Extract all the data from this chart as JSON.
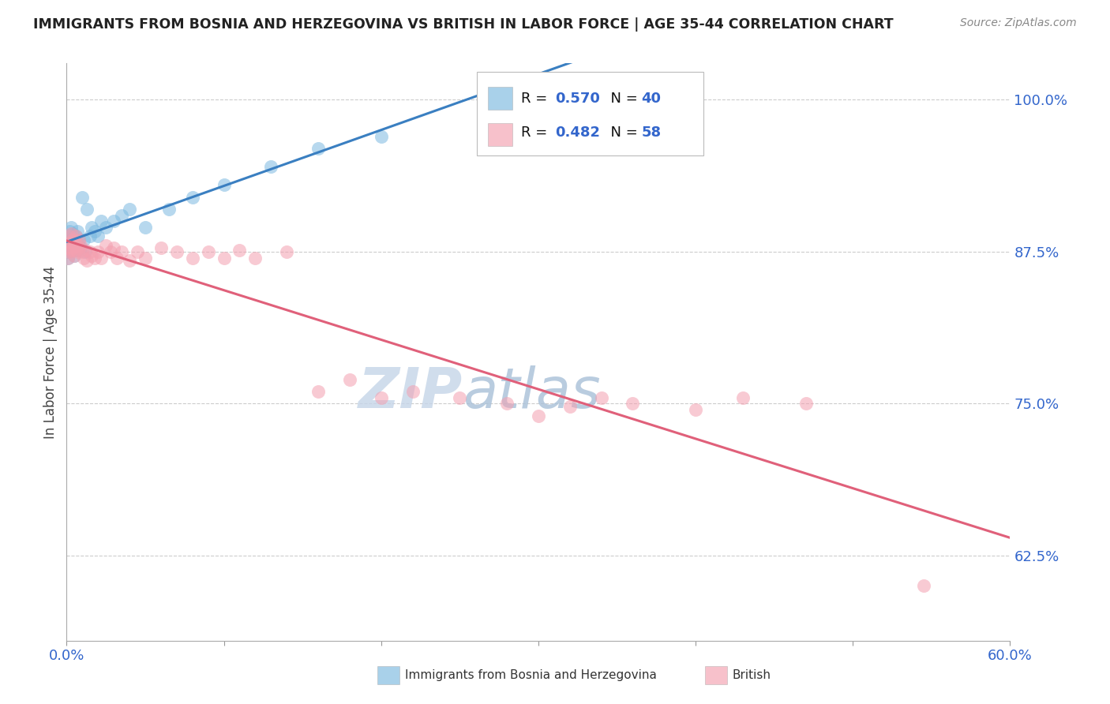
{
  "title": "IMMIGRANTS FROM BOSNIA AND HERZEGOVINA VS BRITISH IN LABOR FORCE | AGE 35-44 CORRELATION CHART",
  "source": "Source: ZipAtlas.com",
  "ylabel": "In Labor Force | Age 35-44",
  "xlim": [
    0.0,
    0.6
  ],
  "ylim": [
    0.555,
    1.03
  ],
  "yticks": [
    0.625,
    0.75,
    0.875,
    1.0
  ],
  "ytick_labels": [
    "62.5%",
    "75.0%",
    "87.5%",
    "100.0%"
  ],
  "xticks": [
    0.0,
    0.1,
    0.2,
    0.3,
    0.4,
    0.5,
    0.6
  ],
  "xtick_labels": [
    "0.0%",
    "",
    "",
    "",
    "",
    "",
    "60.0%"
  ],
  "bosnia_R": 0.57,
  "bosnia_N": 40,
  "british_R": 0.482,
  "british_N": 58,
  "bosnia_color": "#7cb9e0",
  "british_color": "#f4a0b0",
  "bosnia_line_color": "#3a7fc1",
  "british_line_color": "#e0607a",
  "grid_color": "#cccccc",
  "title_color": "#222222",
  "source_color": "#888888",
  "label_color": "#3366cc",
  "watermark_color_zip": "#c8d4e8",
  "watermark_color_atlas": "#b8cce0",
  "bosnia_x": [
    0.001,
    0.001,
    0.001,
    0.002,
    0.002,
    0.002,
    0.002,
    0.003,
    0.003,
    0.003,
    0.004,
    0.004,
    0.005,
    0.005,
    0.006,
    0.006,
    0.007,
    0.007,
    0.008,
    0.009,
    0.01,
    0.011,
    0.012,
    0.013,
    0.015,
    0.016,
    0.018,
    0.02,
    0.022,
    0.025,
    0.03,
    0.035,
    0.04,
    0.05,
    0.065,
    0.08,
    0.1,
    0.13,
    0.16,
    0.2
  ],
  "bosnia_y": [
    0.87,
    0.875,
    0.882,
    0.878,
    0.884,
    0.888,
    0.892,
    0.88,
    0.885,
    0.895,
    0.878,
    0.89,
    0.872,
    0.885,
    0.876,
    0.888,
    0.882,
    0.892,
    0.885,
    0.878,
    0.92,
    0.885,
    0.875,
    0.91,
    0.888,
    0.895,
    0.892,
    0.888,
    0.9,
    0.895,
    0.9,
    0.905,
    0.91,
    0.895,
    0.91,
    0.92,
    0.93,
    0.945,
    0.96,
    0.97
  ],
  "british_x": [
    0.001,
    0.001,
    0.002,
    0.002,
    0.002,
    0.003,
    0.003,
    0.003,
    0.004,
    0.004,
    0.005,
    0.005,
    0.006,
    0.006,
    0.007,
    0.007,
    0.008,
    0.008,
    0.009,
    0.01,
    0.011,
    0.012,
    0.013,
    0.015,
    0.016,
    0.018,
    0.02,
    0.022,
    0.025,
    0.028,
    0.03,
    0.032,
    0.035,
    0.04,
    0.045,
    0.05,
    0.06,
    0.07,
    0.08,
    0.09,
    0.1,
    0.11,
    0.12,
    0.14,
    0.16,
    0.18,
    0.2,
    0.22,
    0.25,
    0.28,
    0.3,
    0.32,
    0.34,
    0.36,
    0.4,
    0.43,
    0.47,
    0.545
  ],
  "british_y": [
    0.87,
    0.878,
    0.875,
    0.882,
    0.888,
    0.876,
    0.882,
    0.89,
    0.878,
    0.885,
    0.872,
    0.88,
    0.876,
    0.888,
    0.875,
    0.88,
    0.878,
    0.885,
    0.88,
    0.875,
    0.87,
    0.876,
    0.868,
    0.875,
    0.872,
    0.87,
    0.875,
    0.87,
    0.88,
    0.875,
    0.878,
    0.87,
    0.875,
    0.868,
    0.875,
    0.87,
    0.878,
    0.875,
    0.87,
    0.875,
    0.87,
    0.876,
    0.87,
    0.875,
    0.76,
    0.77,
    0.755,
    0.76,
    0.755,
    0.75,
    0.74,
    0.748,
    0.755,
    0.75,
    0.745,
    0.755,
    0.75,
    0.6
  ]
}
